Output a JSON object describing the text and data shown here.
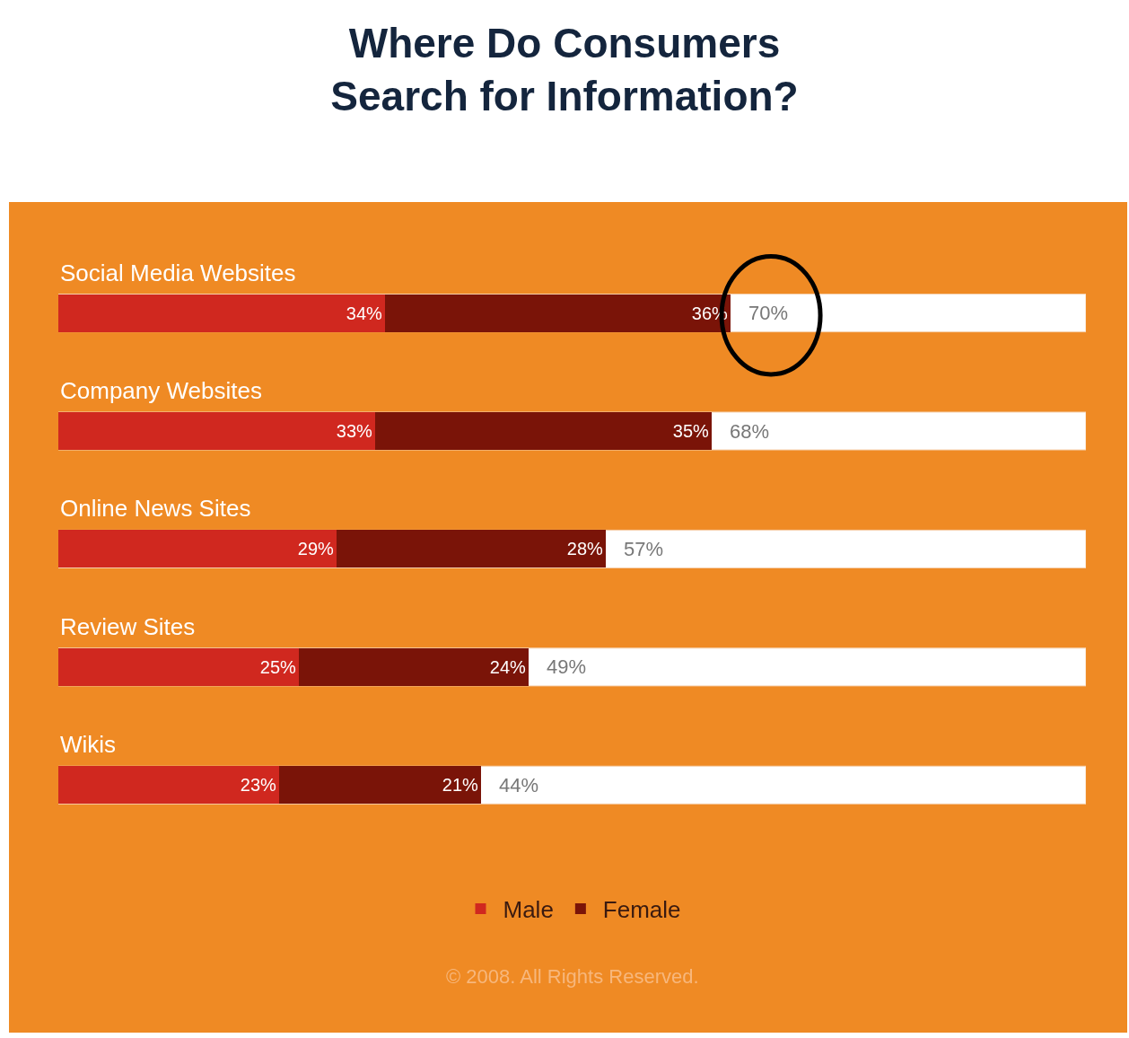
{
  "chart_data": {
    "type": "bar",
    "orientation": "horizontal",
    "stacked": true,
    "title": "Where Do Consumers\nSearch for Information?",
    "categories": [
      "Social Media Websites",
      "Company Websites",
      "Online News Sites",
      "Review Sites",
      "Wikis"
    ],
    "series": [
      {
        "name": "Male",
        "color": "#d0281f",
        "values": [
          34,
          33,
          29,
          25,
          23
        ],
        "value_labels": [
          "34%",
          "33%",
          "29%",
          "25%",
          "23%"
        ]
      },
      {
        "name": "Female",
        "color": "#7a1408",
        "values": [
          36,
          35,
          28,
          24,
          21
        ],
        "value_labels": [
          "36%",
          "35%",
          "28%",
          "24%",
          "21%"
        ]
      }
    ],
    "totals": [
      "70%",
      "68%",
      "57%",
      "49%",
      "44%"
    ],
    "xlim": [
      0,
      107
    ],
    "tick_labels": false,
    "grid": false,
    "legend": "bottom",
    "annotations": [
      "© 2008. All Rights Reserved."
    ]
  }
}
